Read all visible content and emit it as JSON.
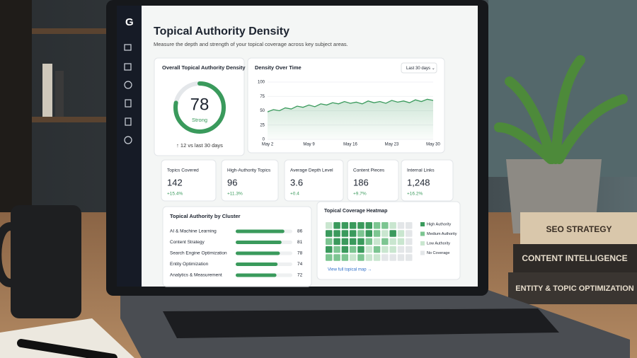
{
  "sidebar": {
    "logo": "G"
  },
  "header": {
    "title": "Topical Authority Density",
    "subtitle": "Measure the depth and strength of your topical coverage across key subject areas."
  },
  "score": {
    "title": "Overall Topical Authority Density",
    "value": 78,
    "range": [
      0,
      100
    ],
    "label": "Strong",
    "change": "↑ 12 vs last 30 days",
    "color": "#3a9a5c"
  },
  "density_chart": {
    "type": "line",
    "title": "Density Over Time",
    "filter": "Last 30 days ⌄",
    "color": "#3a9a5c",
    "x": [
      0,
      1,
      2,
      3,
      4,
      5,
      6,
      7,
      8,
      9,
      10,
      11,
      12,
      13,
      14,
      15,
      16,
      17,
      18,
      19,
      20,
      21,
      22,
      23,
      24,
      25,
      26,
      27,
      28
    ],
    "values": [
      48,
      52,
      50,
      55,
      53,
      58,
      56,
      60,
      57,
      62,
      60,
      64,
      62,
      66,
      63,
      65,
      62,
      67,
      64,
      66,
      63,
      68,
      65,
      67,
      64,
      69,
      66,
      70,
      68
    ],
    "xlim": [
      0,
      28
    ],
    "xticks": [
      {
        "value": 0,
        "label": "May 2"
      },
      {
        "value": 7,
        "label": "May 9"
      },
      {
        "value": 14,
        "label": "May 16"
      },
      {
        "value": 21,
        "label": "May 23"
      },
      {
        "value": 28,
        "label": "May 30"
      }
    ],
    "ylim": [
      0,
      100
    ],
    "yticks": [
      0,
      25,
      50,
      75,
      100
    ],
    "grid": true
  },
  "kpis": [
    {
      "label": "Topics Covered",
      "value": 142,
      "change": "+15.4%"
    },
    {
      "label": "High-Authority Topics",
      "value": 96,
      "change": "+11.3%"
    },
    {
      "label": "Average Depth Level",
      "value": 3.6,
      "change": "+0.4"
    },
    {
      "label": "Content Pieces",
      "value": 186,
      "change": "+9.7%"
    },
    {
      "label": "Internal Links",
      "value": "1,248",
      "change": "+16.2%"
    }
  ],
  "clusters": {
    "title": "Topical Authority by Cluster",
    "color": "#3a9a5c",
    "xlim": [
      0,
      100
    ],
    "categories": [
      "AI & Machine Learning",
      "Content Strategy",
      "Search Engine Optimization",
      "Entity Optimization",
      "Analytics & Measurement"
    ],
    "values": [
      86,
      81,
      78,
      74,
      72
    ]
  },
  "heatmap": {
    "title": "Topical Coverage Heatmap",
    "legend": [
      {
        "name": "High Authority",
        "color": "#3a9a5c"
      },
      {
        "name": "Medium Authority",
        "color": "#7cc591"
      },
      {
        "name": "Low Authority",
        "color": "#c9e6cf"
      },
      {
        "name": "No Coverage",
        "color": "#e3e6e8"
      }
    ],
    "cells": [
      [
        2,
        0,
        0,
        0,
        0,
        0,
        1,
        1,
        2,
        3,
        3
      ],
      [
        0,
        0,
        0,
        0,
        1,
        0,
        1,
        2,
        0,
        2,
        3
      ],
      [
        1,
        0,
        0,
        0,
        0,
        1,
        2,
        1,
        2,
        2,
        3
      ],
      [
        0,
        1,
        0,
        1,
        0,
        2,
        1,
        2,
        2,
        3,
        3
      ],
      [
        1,
        1,
        1,
        2,
        1,
        2,
        2,
        3,
        3,
        3,
        3
      ]
    ],
    "link": "View full topical map →"
  },
  "books": [
    "SEO STRATEGY",
    "CONTENT INTELLIGENCE",
    "ENTITY & TOPIC OPTIMIZATION"
  ]
}
